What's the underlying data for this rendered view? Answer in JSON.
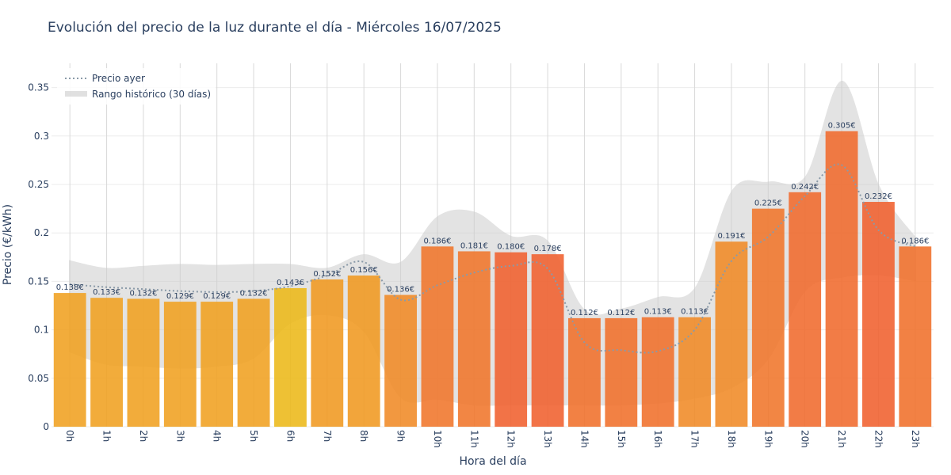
{
  "chart_data": {
    "type": "bar",
    "title": "Evolución del precio de la luz durante el día - Miércoles 16/07/2025",
    "xlabel": "Hora del día",
    "ylabel": "Precio (€/kWh)",
    "ylim": [
      0,
      0.375
    ],
    "yticks": [
      0,
      0.05,
      0.1,
      0.15,
      0.2,
      0.25,
      0.3,
      0.35
    ],
    "ytick_labels": [
      "0",
      "0.05",
      "0.1",
      "0.15",
      "0.2",
      "0.25",
      "0.3",
      "0.35"
    ],
    "categories": [
      "0h",
      "1h",
      "2h",
      "3h",
      "4h",
      "5h",
      "6h",
      "7h",
      "8h",
      "9h",
      "10h",
      "11h",
      "12h",
      "13h",
      "14h",
      "15h",
      "16h",
      "17h",
      "18h",
      "19h",
      "20h",
      "21h",
      "22h",
      "23h"
    ],
    "values": [
      0.138,
      0.133,
      0.132,
      0.129,
      0.129,
      0.132,
      0.143,
      0.152,
      0.156,
      0.136,
      0.186,
      0.181,
      0.18,
      0.178,
      0.112,
      0.112,
      0.113,
      0.113,
      0.191,
      0.225,
      0.242,
      0.305,
      0.232,
      0.186
    ],
    "bar_labels": [
      "0.138€",
      "0.133€",
      "0.132€",
      "0.129€",
      "0.129€",
      "0.132€",
      "0.143€",
      "0.152€",
      "0.156€",
      "0.136€",
      "0.186€",
      "0.181€",
      "0.180€",
      "0.178€",
      "0.112€",
      "0.112€",
      "0.113€",
      "0.113€",
      "0.191€",
      "0.225€",
      "0.242€",
      "0.305€",
      "0.232€",
      "0.186€"
    ],
    "bar_colors": [
      "#f0a020",
      "#f0a020",
      "#f0a020",
      "#f0a020",
      "#f0a020",
      "#f0a020",
      "#ecb818",
      "#f09820",
      "#f09820",
      "#f08a26",
      "#f0752a",
      "#f0752a",
      "#f0602e",
      "#f0602e",
      "#f0702a",
      "#f0702a",
      "#f0702a",
      "#f08a26",
      "#f08a26",
      "#f0752a",
      "#f06a2c",
      "#f06a2c",
      "#f0602e",
      "#f0702a"
    ],
    "series": [
      {
        "name": "Precio ayer",
        "type": "line",
        "style": "dotted",
        "color": "#8a9aa8",
        "values": [
          0.147,
          0.144,
          0.142,
          0.14,
          0.139,
          0.14,
          0.145,
          0.156,
          0.17,
          0.131,
          0.146,
          0.159,
          0.166,
          0.163,
          0.087,
          0.079,
          0.078,
          0.1,
          0.171,
          0.196,
          0.238,
          0.27,
          0.203,
          0.186
        ]
      },
      {
        "name": "Rango histórico (30 días)",
        "type": "area",
        "color": "#cccccc",
        "upper": [
          0.172,
          0.164,
          0.166,
          0.168,
          0.167,
          0.168,
          0.168,
          0.164,
          0.178,
          0.17,
          0.217,
          0.222,
          0.197,
          0.192,
          0.121,
          0.122,
          0.134,
          0.144,
          0.244,
          0.253,
          0.259,
          0.357,
          0.249,
          0.195
        ],
        "lower": [
          0.077,
          0.064,
          0.062,
          0.06,
          0.062,
          0.07,
          0.106,
          0.115,
          0.098,
          0.03,
          0.028,
          0.022,
          0.022,
          0.022,
          0.022,
          0.022,
          0.024,
          0.029,
          0.04,
          0.07,
          0.14,
          0.154,
          0.156,
          0.15
        ]
      }
    ],
    "legend": {
      "position": "top-left",
      "items": [
        "Precio ayer",
        "Rango histórico (30 días)"
      ]
    },
    "grid": true
  }
}
